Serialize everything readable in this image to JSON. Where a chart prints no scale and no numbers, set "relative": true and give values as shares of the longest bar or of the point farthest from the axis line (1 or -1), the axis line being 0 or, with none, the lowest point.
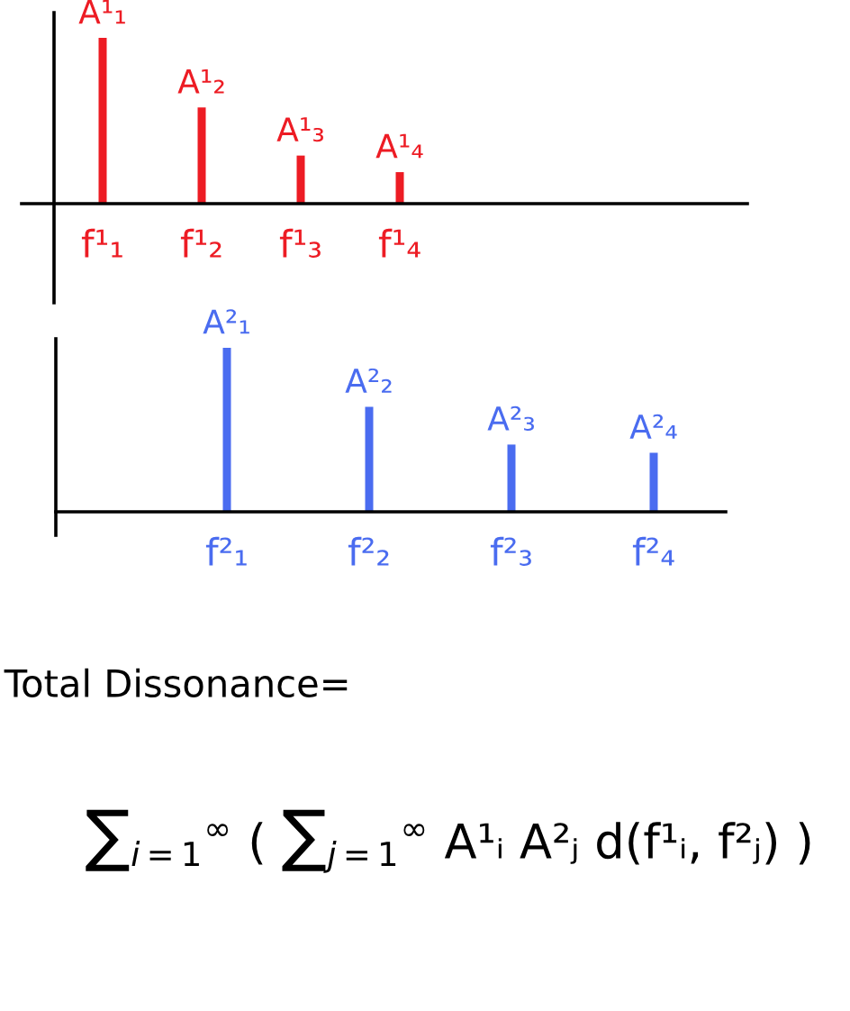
{
  "chart_data": [
    {
      "type": "bar",
      "relative": true,
      "categories": [
        "f¹₁",
        "f¹₂",
        "f¹₃",
        "f¹₄"
      ],
      "values": [
        1,
        0.58,
        0.29,
        0.19
      ],
      "color": "#ed1c24",
      "annotations": [
        {
          "text": "A¹₁",
          "x": "f¹₁",
          "y": 1
        },
        {
          "text": "A¹₂",
          "x": "f¹₂",
          "y": 0.58
        },
        {
          "text": "A¹₃",
          "x": "f¹₃",
          "y": 0.29
        },
        {
          "text": "A¹₄",
          "x": "f¹₄",
          "y": 0.19
        }
      ]
    },
    {
      "type": "bar",
      "relative": true,
      "categories": [
        "f²₁",
        "f²₂",
        "f²₃",
        "f²₄"
      ],
      "values": [
        1,
        0.64,
        0.41,
        0.36
      ],
      "color": "#4a6cf0",
      "annotations": [
        {
          "text": "A²₁",
          "x": "f²₁",
          "y": 1
        },
        {
          "text": "A²₂",
          "x": "f²₂",
          "y": 0.64
        },
        {
          "text": "A²₃",
          "x": "f²₃",
          "y": 0.41
        },
        {
          "text": "A²₄",
          "x": "f²₄",
          "y": 0.36
        }
      ]
    },
    {
      "type": "other",
      "title": "Total Dissonance=",
      "annotations": [
        "∑$_{i=1}$$^{∞}$ ( ∑$_{j=1}$$^{∞}$ A¹ᵢ A²ⱼ d(f¹ᵢ, f²ⱼ) )"
      ]
    }
  ]
}
